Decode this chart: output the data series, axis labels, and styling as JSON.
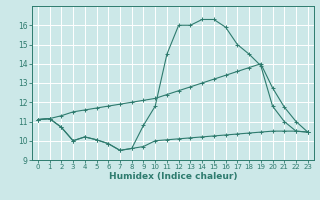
{
  "bg_color": "#cce8e8",
  "grid_color": "#ffffff",
  "line_color": "#2e7b6e",
  "xlabel": "Humidex (Indice chaleur)",
  "xlim": [
    -0.5,
    23.5
  ],
  "ylim": [
    9,
    17
  ],
  "xticks": [
    0,
    1,
    2,
    3,
    4,
    5,
    6,
    7,
    8,
    9,
    10,
    11,
    12,
    13,
    14,
    15,
    16,
    17,
    18,
    19,
    20,
    21,
    22,
    23
  ],
  "yticks": [
    9,
    10,
    11,
    12,
    13,
    14,
    15,
    16
  ],
  "line1_x": [
    0,
    1,
    2,
    3,
    4,
    5,
    6,
    7,
    8,
    9,
    10,
    11,
    12,
    13,
    14,
    15,
    16,
    17,
    18,
    19,
    20,
    21,
    22,
    23
  ],
  "line1_y": [
    11.1,
    11.15,
    10.7,
    10.0,
    10.2,
    10.05,
    9.85,
    9.5,
    9.6,
    9.7,
    10.0,
    10.05,
    10.1,
    10.15,
    10.2,
    10.25,
    10.3,
    10.35,
    10.4,
    10.45,
    10.5,
    10.5,
    10.5,
    10.45
  ],
  "line2_x": [
    0,
    1,
    2,
    3,
    4,
    5,
    6,
    7,
    8,
    9,
    10,
    11,
    12,
    13,
    14,
    15,
    16,
    17,
    18,
    19,
    20,
    21,
    22,
    23
  ],
  "line2_y": [
    11.1,
    11.15,
    10.7,
    10.0,
    10.2,
    10.05,
    9.85,
    9.5,
    9.6,
    10.8,
    11.8,
    14.5,
    16.0,
    16.0,
    16.3,
    16.3,
    15.9,
    15.0,
    14.5,
    13.9,
    11.8,
    11.0,
    10.5,
    10.45
  ],
  "line3_x": [
    0,
    1,
    2,
    3,
    4,
    5,
    6,
    7,
    8,
    9,
    10,
    11,
    12,
    13,
    14,
    15,
    16,
    17,
    18,
    19,
    20,
    21,
    22,
    23
  ],
  "line3_y": [
    11.1,
    11.15,
    11.3,
    11.5,
    11.6,
    11.7,
    11.8,
    11.9,
    12.0,
    12.1,
    12.2,
    12.4,
    12.6,
    12.8,
    13.0,
    13.2,
    13.4,
    13.6,
    13.8,
    14.0,
    12.75,
    11.75,
    11.0,
    10.45
  ],
  "figsize": [
    3.2,
    2.0
  ],
  "dpi": 100
}
